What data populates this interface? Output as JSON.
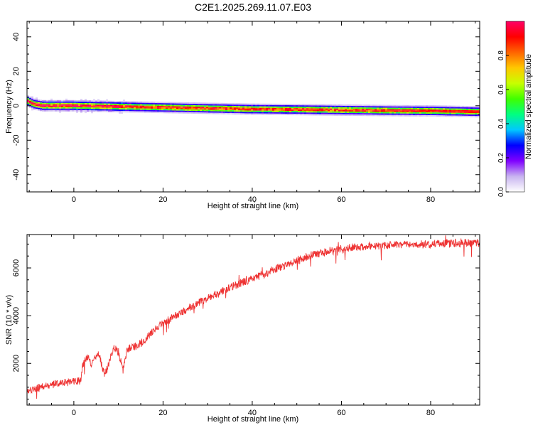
{
  "title": "C2E1.2025.269.11.07.E03",
  "chart_data": [
    {
      "type": "heatmap",
      "xlabel": "Height of straight line (km)",
      "ylabel": "Frequency (Hz)",
      "xlim": [
        -10.5,
        91
      ],
      "ylim": [
        -50,
        49
      ],
      "xticks": [
        0,
        20,
        40,
        60,
        80
      ],
      "yticks": [
        -40,
        -20,
        0,
        20,
        40
      ],
      "xtick_labels": [
        "0",
        "20",
        "40",
        "60",
        "80"
      ],
      "ytick_labels": [
        "-40",
        "-20",
        "0",
        "20",
        "40"
      ],
      "grid": false,
      "ridge": {
        "x": [
          -10.5,
          -9,
          -7,
          -5,
          0,
          10,
          20,
          30,
          40,
          50,
          60,
          70,
          80,
          91
        ],
        "freq": [
          3,
          1,
          0,
          0,
          0,
          -0.5,
          -1,
          -1.5,
          -2,
          -2.2,
          -2.5,
          -2.8,
          -3,
          -3.5
        ]
      },
      "colorbar": {
        "label": "Normalized spectral amplitude",
        "ticks": [
          0.0,
          0.2,
          0.4,
          0.6,
          0.8
        ],
        "tick_labels": [
          "0.0",
          "0.2",
          "0.4",
          "0.6",
          "0.8"
        ],
        "range": [
          0,
          1
        ],
        "colormap": [
          "#ffffff",
          "#c8b4f0",
          "#8000ff",
          "#0000ff",
          "#00c8ff",
          "#00ff80",
          "#40ff00",
          "#c8ff00",
          "#ffc800",
          "#ff6400",
          "#ff0000",
          "#ff0066"
        ]
      }
    },
    {
      "type": "line",
      "xlabel": "Height of straight line (km)",
      "ylabel": "SNR (10 * v/v)",
      "xlim": [
        -10.5,
        91
      ],
      "ylim": [
        250,
        7400
      ],
      "xticks": [
        0,
        20,
        40,
        60,
        80
      ],
      "yticks": [
        2000,
        4000,
        6000
      ],
      "xtick_labels": [
        "0",
        "20",
        "40",
        "60",
        "80"
      ],
      "ytick_labels": [
        "2000",
        "4000",
        "6000"
      ],
      "grid": false,
      "series_color": "#ee3333",
      "trend": {
        "x": [
          -10.5,
          -8,
          -4,
          0,
          1.5,
          2,
          3,
          4,
          5.5,
          7,
          9,
          10,
          11,
          12,
          14,
          16,
          18,
          20,
          22,
          25,
          28,
          30,
          33,
          36,
          40,
          43,
          45,
          48,
          50,
          52,
          55,
          60,
          65,
          70,
          75,
          80,
          85,
          91
        ],
        "snr": [
          800,
          1000,
          1150,
          1250,
          1250,
          1900,
          2300,
          2000,
          2400,
          1500,
          2700,
          2500,
          1700,
          2600,
          2700,
          3000,
          3400,
          3700,
          3900,
          4200,
          4550,
          4700,
          5000,
          5250,
          5550,
          5750,
          5950,
          6150,
          6300,
          6450,
          6600,
          6800,
          6900,
          6950,
          6980,
          7000,
          7050,
          7050
        ]
      }
    }
  ]
}
